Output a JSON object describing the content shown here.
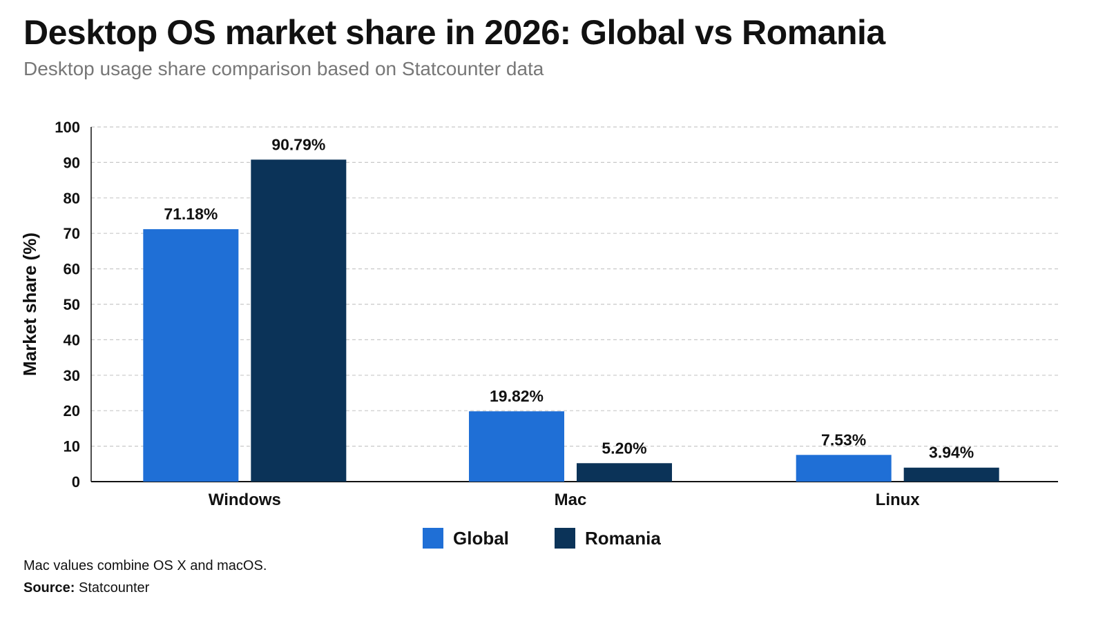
{
  "title": "Desktop OS market share in 2026: Global vs Romania",
  "subtitle": "Desktop usage share comparison based on Statcounter data",
  "footnote": "Mac values combine OS X and macOS.",
  "source": {
    "label": "Source:",
    "value": "Statcounter"
  },
  "colors": {
    "global": "#1f6fd6",
    "romania": "#0b3358",
    "grid": "#c8c8c8",
    "axis": "#111111"
  },
  "chart_data": {
    "type": "bar",
    "categories": [
      "Windows",
      "Mac",
      "Linux"
    ],
    "series": [
      {
        "name": "Global",
        "values": [
          71.18,
          19.82,
          7.53
        ],
        "labels": [
          "71.18%",
          "19.82%",
          "7.53%"
        ]
      },
      {
        "name": "Romania",
        "values": [
          90.79,
          5.2,
          3.94
        ],
        "labels": [
          "90.79%",
          "5.20%",
          "3.94%"
        ]
      }
    ],
    "ylabel": "Market share (%)",
    "xlabel": "",
    "ylim": [
      0,
      100
    ],
    "yticks": [
      0,
      10,
      20,
      30,
      40,
      50,
      60,
      70,
      80,
      90,
      100
    ],
    "grid": true,
    "legend_position": "bottom-center"
  }
}
